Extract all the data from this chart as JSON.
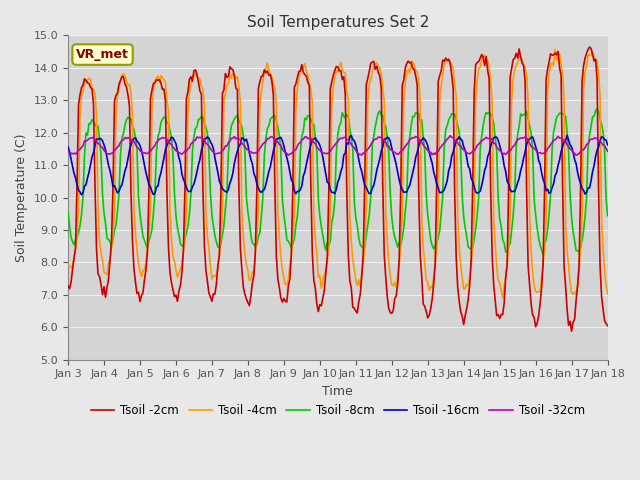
{
  "title": "Soil Temperatures Set 2",
  "xlabel": "Time",
  "ylabel": "Soil Temperature (C)",
  "ylim": [
    5.0,
    15.0
  ],
  "yticks": [
    5.0,
    6.0,
    7.0,
    8.0,
    9.0,
    10.0,
    11.0,
    12.0,
    13.0,
    14.0,
    15.0
  ],
  "xtick_labels": [
    "Jan 3",
    "Jan 4",
    "Jan 5",
    "Jan 6",
    "Jan 7",
    "Jan 8",
    "Jan 9",
    "Jan 10",
    "Jan 11",
    "Jan 12",
    "Jan 13",
    "Jan 14",
    "Jan 15",
    "Jan 16",
    "Jan 17",
    "Jan 18"
  ],
  "series_colors": [
    "#cc0000",
    "#ff9900",
    "#00cc00",
    "#0000cc",
    "#bb00bb"
  ],
  "series_labels": [
    "Tsoil -2cm",
    "Tsoil -4cm",
    "Tsoil -8cm",
    "Tsoil -16cm",
    "Tsoil -32cm"
  ],
  "annotation_text": "VR_met",
  "background_color": "#e8e8e8",
  "plot_bg_color": "#d4d4d4",
  "grid_color": "#f0f0f0",
  "figsize": [
    6.4,
    4.8
  ],
  "dpi": 100,
  "title_fontsize": 11,
  "axis_label_fontsize": 9,
  "tick_fontsize": 8
}
